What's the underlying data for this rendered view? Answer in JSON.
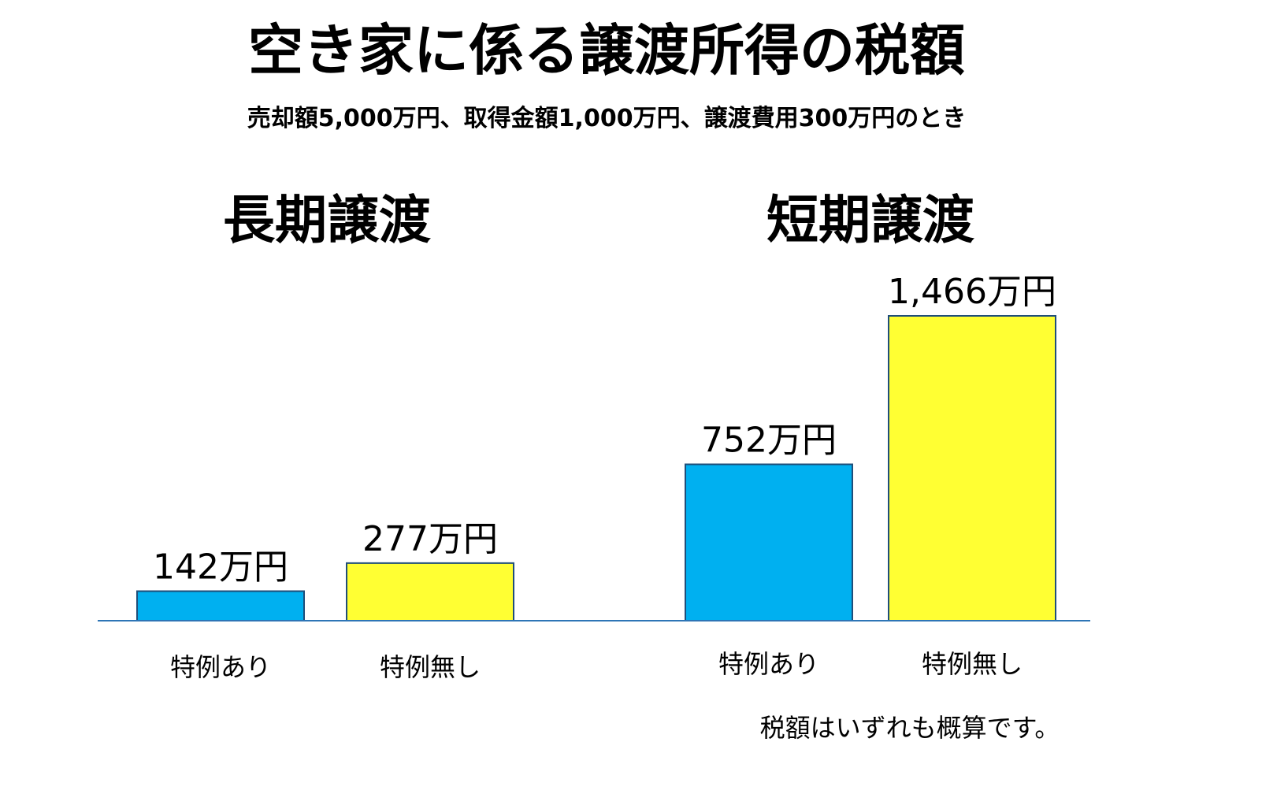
{
  "chart_data": {
    "type": "bar",
    "title": "空き家に係る譲渡所得の税額",
    "subtitle": "売却額5,000万円、取得金額1,000万円、譲渡費用300万円のとき",
    "note": "税額はいずれも概算です。",
    "groups": [
      {
        "label": "長期譲渡",
        "bars": [
          {
            "category": "特例あり",
            "value": 142,
            "value_label": "142万円",
            "color": "#00b0f0"
          },
          {
            "category": "特例無し",
            "value": 277,
            "value_label": "277万円",
            "color": "#ffff33"
          }
        ]
      },
      {
        "label": "短期譲渡",
        "bars": [
          {
            "category": "特例あり",
            "value": 752,
            "value_label": "752万円",
            "color": "#00b0f0"
          },
          {
            "category": "特例無し",
            "value": 1466,
            "value_label": "1,466万円",
            "color": "#ffff33"
          }
        ]
      }
    ],
    "ylim": [
      0,
      1466
    ],
    "grid": false,
    "colors": {
      "with_special": "#00b0f0",
      "without_special": "#ffff33",
      "bar_border": "#1f4e79",
      "baseline": "#2e75b6"
    }
  }
}
